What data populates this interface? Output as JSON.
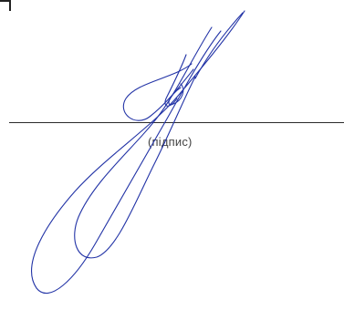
{
  "form": {
    "signature_caption": "(підпис)"
  },
  "colors": {
    "line": "#2a2a2a",
    "ink": "#2233a6",
    "caption": "#444444"
  }
}
